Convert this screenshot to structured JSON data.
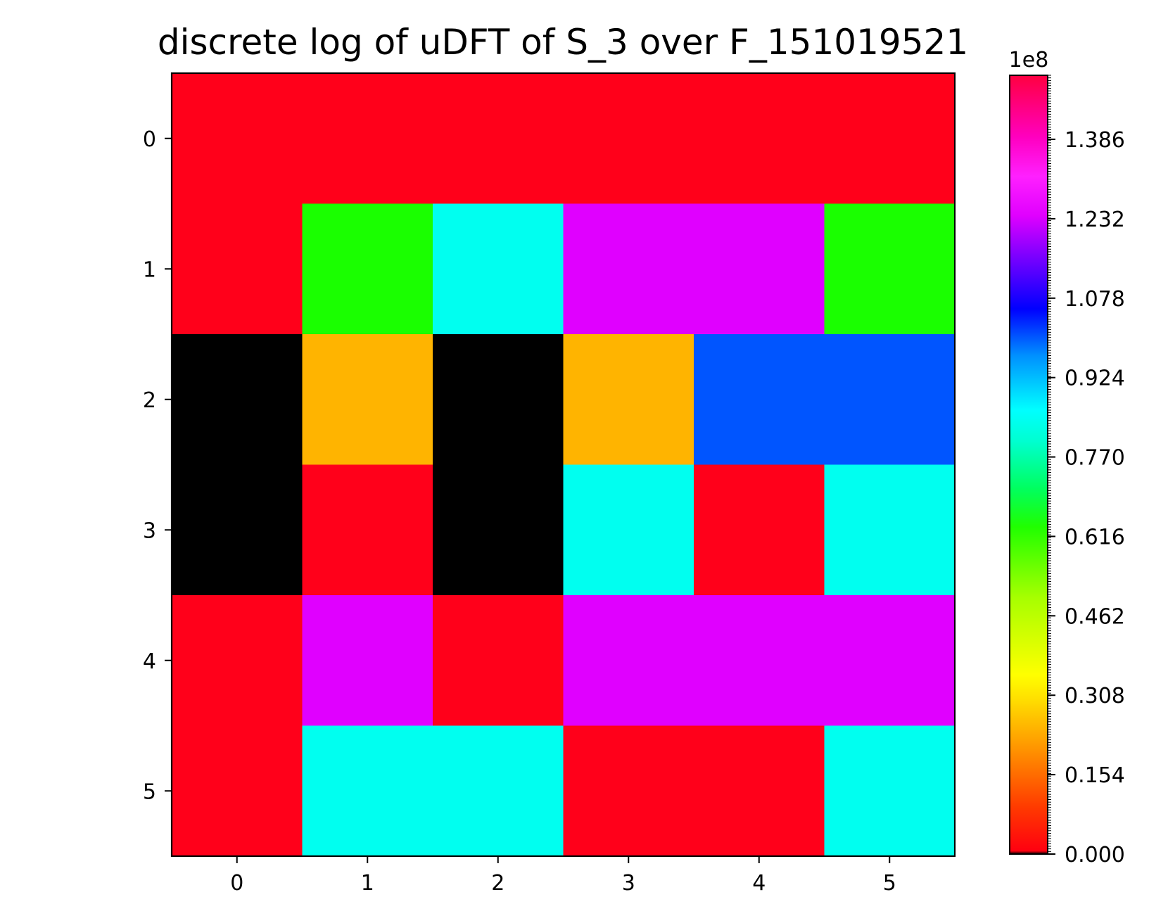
{
  "chart_data": {
    "type": "heatmap",
    "title": "discrete log of uDFT of S_3 over F_151019521",
    "xlabel": "",
    "ylabel": "",
    "x_ticks": [
      "0",
      "1",
      "2",
      "3",
      "4",
      "5"
    ],
    "y_ticks": [
      "0",
      "1",
      "2",
      "3",
      "4",
      "5"
    ],
    "colorscale": "gist_ncar_r-like (black at 0, red low, orange, yellow, green, cyan, blue, purple, magenta, red high)",
    "matrix": [
      [
        151000000.0,
        151000000.0,
        151000000.0,
        151000000.0,
        151000000.0,
        151000000.0
      ],
      [
        151000000.0,
        52800000.0,
        75500000.0,
        130000000.0,
        130000000.0,
        52800000.0
      ],
      [
        0,
        18000000.0,
        0,
        18000000.0,
        93000000.0,
        93000000.0
      ],
      [
        0,
        151000000.0,
        0,
        75500000.0,
        151000000.0,
        75500000.0
      ],
      [
        151000000.0,
        130000000.0,
        151000000.0,
        130000000.0,
        130000000.0,
        130000000.0
      ],
      [
        151000000.0,
        75500000.0,
        75500000.0,
        151000000.0,
        151000000.0,
        75500000.0
      ]
    ],
    "cell_colors": {
      "red": "#ff001a",
      "green": "#1aff00",
      "cyan": "#00fff0",
      "magenta": "#e000ff",
      "black": "#000000",
      "orange": "#ffb400",
      "blue": "#0055ff"
    },
    "color_grid": [
      [
        "red",
        "red",
        "red",
        "red",
        "red",
        "red"
      ],
      [
        "red",
        "green",
        "cyan",
        "magenta",
        "magenta",
        "green"
      ],
      [
        "black",
        "orange",
        "black",
        "orange",
        "blue",
        "blue"
      ],
      [
        "black",
        "red",
        "black",
        "cyan",
        "red",
        "cyan"
      ],
      [
        "red",
        "magenta",
        "red",
        "magenta",
        "magenta",
        "magenta"
      ],
      [
        "red",
        "cyan",
        "cyan",
        "red",
        "red",
        "cyan"
      ]
    ],
    "colorbar": {
      "range": [
        0,
        1.5101952
      ],
      "ticks": [
        "0.000",
        "0.154",
        "0.308",
        "0.462",
        "0.616",
        "0.770",
        "0.924",
        "1.078",
        "1.232",
        "1.386"
      ],
      "tick_values": [
        0,
        0.154,
        0.308,
        0.462,
        0.616,
        0.77,
        0.924,
        1.078,
        1.232,
        1.386
      ],
      "exponent_label": "1e8",
      "gradient_stops": [
        {
          "v": 0.0,
          "c": "#000000"
        },
        {
          "v": 0.004,
          "c": "#ff0010"
        },
        {
          "v": 0.06,
          "c": "#ff3a00"
        },
        {
          "v": 0.14,
          "c": "#ff9a00"
        },
        {
          "v": 0.2,
          "c": "#ffe000"
        },
        {
          "v": 0.23,
          "c": "#ffff00"
        },
        {
          "v": 0.33,
          "c": "#a6ff00"
        },
        {
          "v": 0.42,
          "c": "#20ff00"
        },
        {
          "v": 0.47,
          "c": "#00ff60"
        },
        {
          "v": 0.53,
          "c": "#00ffd0"
        },
        {
          "v": 0.57,
          "c": "#00ffff"
        },
        {
          "v": 0.64,
          "c": "#0090ff"
        },
        {
          "v": 0.7,
          "c": "#0000ff"
        },
        {
          "v": 0.77,
          "c": "#8000ff"
        },
        {
          "v": 0.82,
          "c": "#e000ff"
        },
        {
          "v": 0.87,
          "c": "#ff20ff"
        },
        {
          "v": 0.92,
          "c": "#ff00c0"
        },
        {
          "v": 1.0,
          "c": "#ff0040"
        }
      ]
    }
  }
}
